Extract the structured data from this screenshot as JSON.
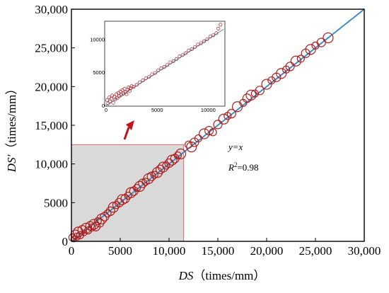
{
  "chart_data": [
    {
      "type": "scatter",
      "x_ticks": [
        "0",
        "5000",
        "10,000",
        "15,000",
        "20,000",
        "25,000",
        "30,000"
      ],
      "y_ticks": [
        "0",
        "5000",
        "10,000",
        "15,000",
        "20,000",
        "25,000",
        "30,000"
      ],
      "x_tick_values": [
        0,
        5000,
        10000,
        15000,
        20000,
        25000,
        30000
      ],
      "y_tick_values": [
        0,
        5000,
        10000,
        15000,
        20000,
        25000,
        30000
      ],
      "xlim": [
        0,
        30000
      ],
      "ylim": [
        0,
        30000
      ],
      "xlabel_var": "DS",
      "xlabel_unit": "（times/mm）",
      "ylabel_var": "DS'",
      "ylabel_unit": "（times/mm）",
      "annotation_fit": "y=x",
      "annotation_r2_label": "R",
      "annotation_r2_exp": "2",
      "annotation_r2_value": "=0.98",
      "fit_line": {
        "x": [
          0,
          30000
        ],
        "y": [
          0,
          30000
        ]
      },
      "highlight_region": {
        "x": [
          0,
          11500
        ],
        "y": [
          0,
          12500
        ]
      },
      "colors": {
        "marker": "#b01c1c",
        "line": "#3a8fc8",
        "region": "#d9d9d9",
        "region_edge": "#d46a6a",
        "arrow": "#c0141c"
      },
      "series": {
        "x": [
          100,
          250,
          400,
          550,
          700,
          900,
          1100,
          1300,
          1500,
          1700,
          1900,
          2100,
          2300,
          2500,
          2700,
          2900,
          3100,
          3400,
          3700,
          4000,
          4300,
          4600,
          4900,
          5200,
          5500,
          5800,
          6100,
          6400,
          6700,
          7000,
          7300,
          7600,
          7900,
          8200,
          8500,
          8800,
          9100,
          9400,
          9700,
          10000,
          10300,
          10600,
          10900,
          11200,
          12000,
          12300,
          12600,
          13000,
          13600,
          14100,
          14500,
          15000,
          15600,
          16000,
          16400,
          17000,
          17600,
          18000,
          18400,
          18800,
          19300,
          20000,
          20500,
          21000,
          21500,
          22000,
          22400,
          23000,
          23500,
          24000,
          24500,
          25000,
          25600,
          26300
        ],
        "y": [
          500,
          300,
          900,
          600,
          1200,
          800,
          1500,
          1100,
          1700,
          1400,
          2000,
          1800,
          2200,
          1900,
          2600,
          2400,
          2900,
          3200,
          3600,
          3900,
          4400,
          4700,
          5000,
          5400,
          5500,
          5900,
          6300,
          6500,
          6900,
          7100,
          7500,
          7700,
          8100,
          8400,
          8600,
          8900,
          9300,
          9600,
          9800,
          10100,
          10500,
          10700,
          11100,
          11300,
          12500,
          12200,
          12800,
          13300,
          13900,
          14300,
          14100,
          15100,
          15800,
          16200,
          16500,
          17400,
          17900,
          18500,
          18900,
          19100,
          19500,
          20300,
          20800,
          21200,
          21700,
          22200,
          22600,
          23300,
          23600,
          24300,
          24800,
          25300,
          25700,
          26300
        ],
        "size": [
          5,
          4,
          6,
          5,
          7,
          5,
          6,
          4,
          7,
          5,
          6,
          5,
          7,
          6,
          5,
          6,
          7,
          6,
          5,
          6,
          7,
          5,
          6,
          7,
          6,
          5,
          7,
          6,
          5,
          7,
          6,
          5,
          7,
          6,
          5,
          7,
          6,
          7,
          5,
          6,
          7,
          6,
          5,
          7,
          5,
          7,
          6,
          5,
          7,
          6,
          5,
          6,
          7,
          5,
          6,
          7,
          5,
          6,
          7,
          5,
          6,
          7,
          5,
          6,
          7,
          5,
          6,
          7,
          5,
          6,
          7,
          5,
          6,
          7
        ]
      }
    },
    {
      "type": "scatter",
      "x_ticks": [
        "0",
        "5000",
        "10000"
      ],
      "y_ticks": [
        "0",
        "5000",
        "10000"
      ],
      "x_tick_values": [
        0,
        5000,
        10000
      ],
      "y_tick_values": [
        0,
        5000,
        10000
      ],
      "xlim": [
        0,
        11500
      ],
      "ylim": [
        0,
        12500
      ],
      "fit_line": {
        "x": [
          0,
          11500
        ],
        "y": [
          0,
          11500
        ]
      },
      "series": {
        "x": [
          100,
          200,
          300,
          400,
          500,
          600,
          700,
          800,
          900,
          1000,
          1100,
          1200,
          1300,
          1400,
          1500,
          1600,
          1700,
          1800,
          1900,
          2000,
          2100,
          2200,
          2300,
          2400,
          2500,
          2700,
          3000,
          3300,
          3600,
          3900,
          4200,
          4500,
          4800,
          5100,
          5400,
          5700,
          6000,
          6300,
          6600,
          6900,
          7200,
          7500,
          7800,
          8100,
          8400,
          8700,
          9000,
          9300,
          9600,
          9900,
          10200,
          10500,
          10800,
          11000,
          11200
        ],
        "y": [
          800,
          300,
          1200,
          600,
          1000,
          1500,
          400,
          1300,
          900,
          1700,
          1100,
          1900,
          1400,
          2100,
          1600,
          2300,
          1800,
          2500,
          2000,
          1700,
          2400,
          2700,
          2200,
          2600,
          2900,
          2800,
          3100,
          3500,
          3800,
          4100,
          4300,
          4700,
          4900,
          5300,
          5600,
          5800,
          6100,
          6500,
          6700,
          7000,
          7400,
          7600,
          7900,
          8300,
          8500,
          8800,
          9200,
          9400,
          9700,
          10000,
          10400,
          10600,
          10900,
          11600,
          12200
        ]
      }
    }
  ]
}
